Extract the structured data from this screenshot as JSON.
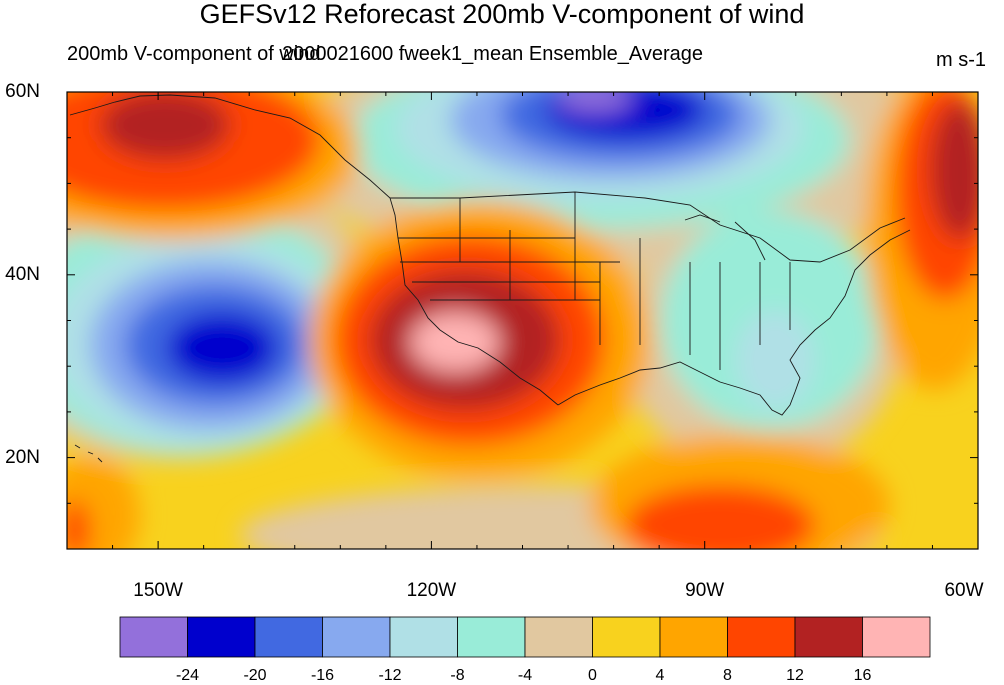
{
  "title": "GEFSv12 Reforecast 200mb V-component of wind",
  "subtitle_left": "200mb V-component of wind",
  "subtitle_center": "2000021600 fweek1_mean Ensemble_Average",
  "units": "m s-1",
  "map": {
    "lon_range": [
      -160,
      -60
    ],
    "lat_range": [
      10,
      60
    ],
    "lat_ticks": [
      {
        "value": 60,
        "label": "60N"
      },
      {
        "value": 40,
        "label": "40N"
      },
      {
        "value": 20,
        "label": "20N"
      }
    ],
    "lon_ticks": [
      {
        "value": -150,
        "label": "150W"
      },
      {
        "value": -120,
        "label": "120W"
      },
      {
        "value": -90,
        "label": "90W"
      },
      {
        "value": -60,
        "label": "60W"
      }
    ]
  },
  "colorbar": {
    "colors": [
      "#9370db",
      "#0000cd",
      "#4169e1",
      "#87a9ef",
      "#b0e0e6",
      "#99ecd8",
      "#e1c8a0",
      "#f8d21e",
      "#ffa500",
      "#ff4500",
      "#b22222",
      "#ffb4b4"
    ],
    "labels": [
      "-24",
      "-20",
      "-16",
      "-12",
      "-8",
      "-4",
      "0",
      "4",
      "8",
      "12",
      "16"
    ]
  }
}
